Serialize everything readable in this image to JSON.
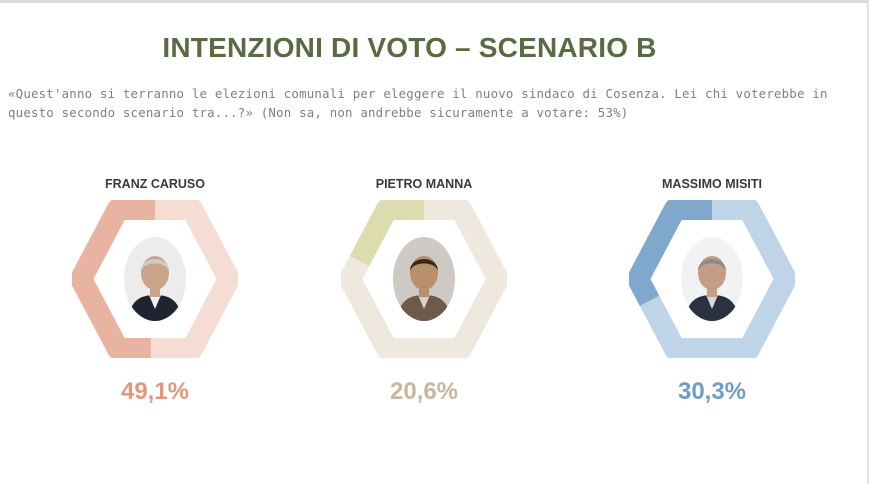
{
  "title": "INTENZIONI DI VOTO – SCENARIO B",
  "subtitle": "«Quest'anno si terranno le elezioni comunali per eleggere il nuovo sindaco di Cosenza. Lei chi voterebbe in questo secondo scenario tra...?» (Non sa, non andrebbe sicuramente a votare: 53%)",
  "chart_data": {
    "type": "pie",
    "categories": [
      "FRANZ CARUSO",
      "PIETRO MANNA",
      "MASSIMO MISITI"
    ],
    "values": [
      49.1,
      20.6,
      30.3
    ],
    "labels": [
      "49,1%",
      "20,6%",
      "30,3%"
    ],
    "colors": {
      "FRANZ CARUSO": {
        "fill": "#e9b3a1",
        "track": "#f6ddd3",
        "text": "#e2977c"
      },
      "PIETRO MANNA": {
        "fill": "#dcdcae",
        "track": "#eee8de",
        "text": "#c9b79c"
      },
      "MASSIMO MISITI": {
        "fill": "#7fa8cc",
        "track": "#bfd4e6",
        "text": "#6f9cc8"
      }
    }
  },
  "photos": [
    {
      "icon": "candidate-photo-caruso",
      "bg": "#ececec",
      "skin": "#c9a38a",
      "hair": "#d0ccc5",
      "clothes": "#1f2530",
      "shirt": "#f2f2f2"
    },
    {
      "icon": "candidate-photo-manna",
      "bg": "#cfc9c4",
      "skin": "#b9906e",
      "hair": "#3b2a1f",
      "clothes": "#6e5a48",
      "shirt": "#d6d2c8"
    },
    {
      "icon": "candidate-photo-misiti",
      "bg": "#f2f2f2",
      "skin": "#c29e86",
      "hair": "#8c8c8c",
      "clothes": "#2a3140",
      "shirt": "#d9d9d9"
    }
  ]
}
